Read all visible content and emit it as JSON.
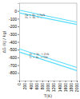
{
  "chart_data": {
    "type": "line",
    "title": "",
    "xlabel": "T(K)",
    "ylabel": "ΔG (kJ / kg)",
    "x": [
      0,
      2000
    ],
    "series": [
      {
        "color": "#55ddff",
        "values": [
          -490,
          -730
        ]
      },
      {
        "color": "#55ddff",
        "values": [
          -530,
          -770
        ]
      },
      {
        "color": "#55ddff",
        "values": [
          10,
          -145
        ]
      },
      {
        "color": "#55ddff",
        "values": [
          -25,
          -175
        ]
      }
    ],
    "annotations": [
      {
        "text": "Zr + N₂ → ZrN",
        "x": 350,
        "y": -555
      },
      {
        "text": "Ti + N₂ → TiN",
        "x": 350,
        "y": -600
      },
      {
        "text": "Fe + N₂ → FeN",
        "x": 200,
        "y": -48
      },
      {
        "text": "H₂ + N₂ → ...",
        "x": 200,
        "y": -88
      }
    ],
    "xlim": [
      0,
      2000
    ],
    "ylim": [
      -900,
      100
    ],
    "xticks": [
      0,
      200,
      400,
      600,
      800,
      1000,
      1200,
      1400,
      1600,
      1800,
      2000
    ],
    "yticks": [
      0,
      -100,
      -200,
      -300,
      -400,
      -500,
      -600,
      -700,
      -800
    ]
  }
}
